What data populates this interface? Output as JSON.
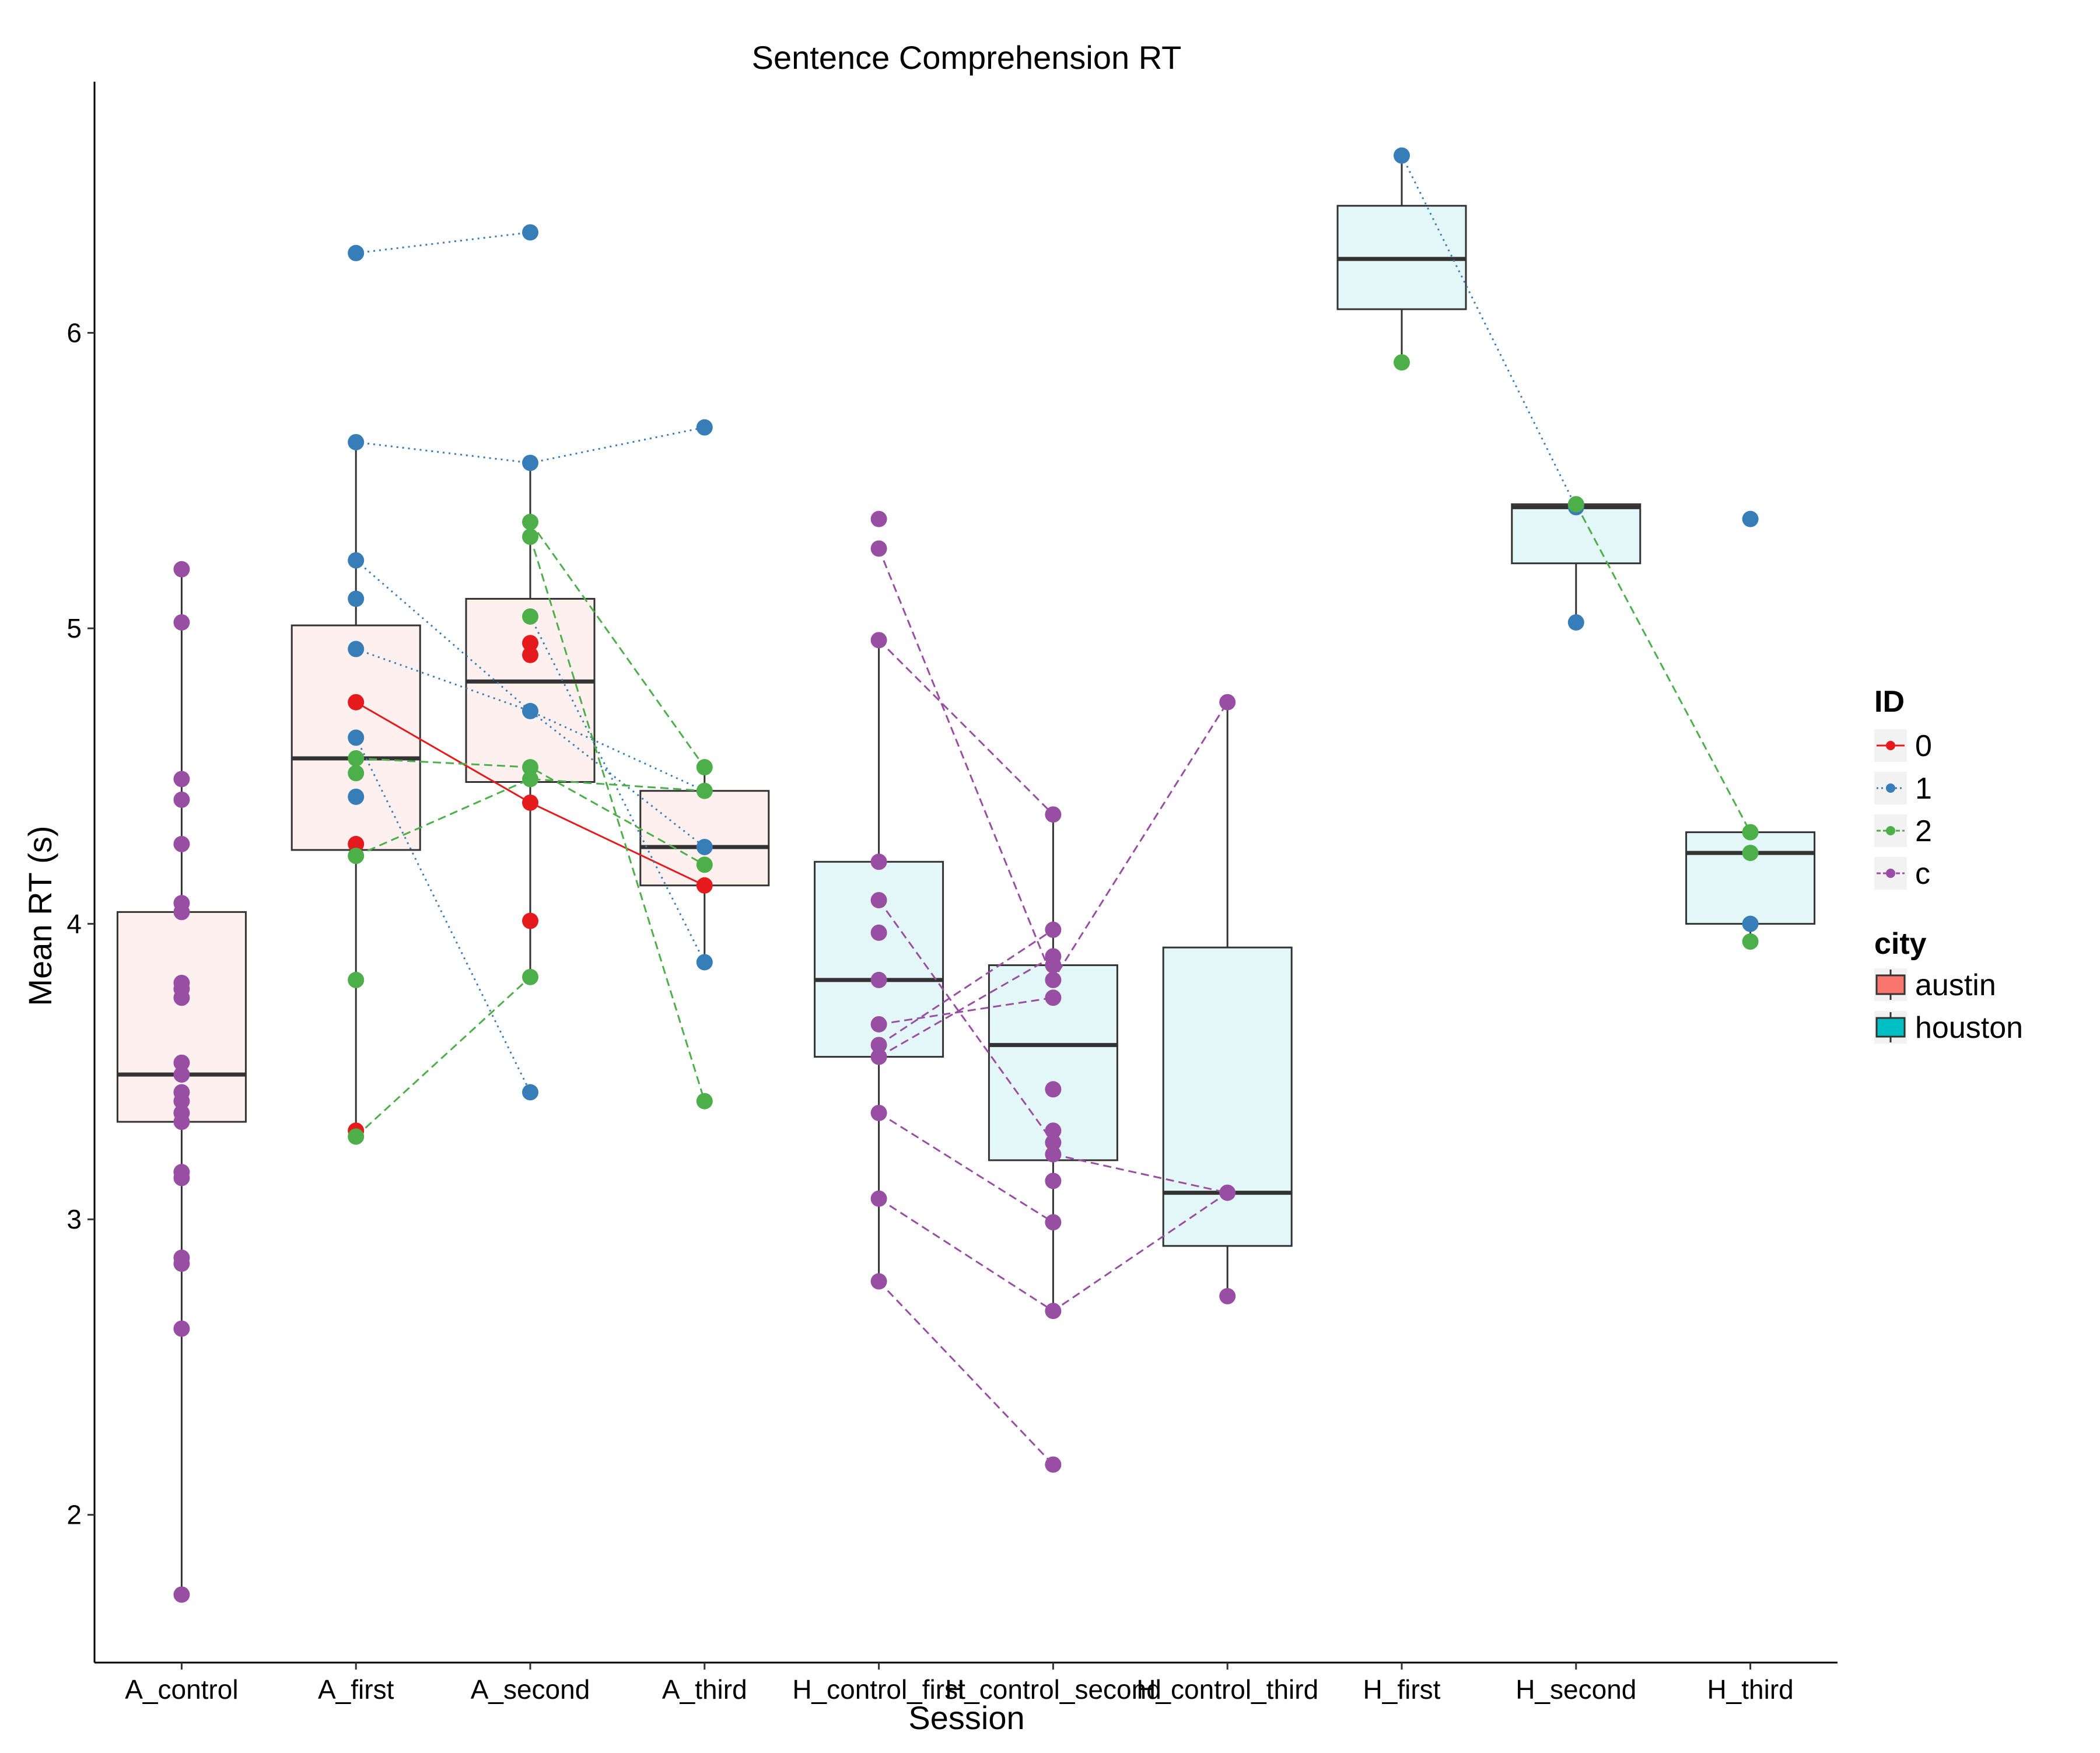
{
  "chart_data": {
    "type": "box",
    "title": "Sentence Comprehension RT",
    "xlabel": "Session",
    "ylabel": "Mean RT (s)",
    "ylim": [
      1.5,
      6.85
    ],
    "yticks": [
      2,
      3,
      4,
      5,
      6
    ],
    "categories": [
      "A_control",
      "A_first",
      "A_second",
      "A_third",
      "H_control_first",
      "H_control_second",
      "H_control_third",
      "H_first",
      "H_second",
      "H_third"
    ],
    "grid": false,
    "legend_position": "right",
    "city_colors": {
      "austin": "#f8766d",
      "houston": "#00bfc4"
    },
    "box_fill_colors": {
      "austin": "#fef0ef",
      "houston": "#e4f7f8"
    },
    "boxes": [
      {
        "category": "A_control",
        "city": "austin",
        "min": 1.73,
        "q1": 3.33,
        "median": 3.49,
        "q3": 4.04,
        "max": 5.2
      },
      {
        "category": "A_first",
        "city": "austin",
        "min": 3.28,
        "q1": 4.25,
        "median": 4.56,
        "q3": 5.01,
        "max": 5.63
      },
      {
        "category": "A_second",
        "city": "austin",
        "min": 3.82,
        "q1": 4.48,
        "median": 4.82,
        "q3": 5.1,
        "max": 5.56
      },
      {
        "category": "A_third",
        "city": "austin",
        "min": 3.87,
        "q1": 4.13,
        "median": 4.26,
        "q3": 4.45,
        "max": 4.53
      },
      {
        "category": "H_control_first",
        "city": "houston",
        "min": 2.79,
        "q1": 3.55,
        "median": 3.81,
        "q3": 4.21,
        "max": 4.96
      },
      {
        "category": "H_control_second",
        "city": "houston",
        "min": 2.69,
        "q1": 3.2,
        "median": 3.59,
        "q3": 3.86,
        "max": 4.37
      },
      {
        "category": "H_control_third",
        "city": "houston",
        "min": 2.74,
        "q1": 2.91,
        "median": 3.09,
        "q3": 3.92,
        "max": 4.75
      },
      {
        "category": "H_first",
        "city": "houston",
        "min": 5.9,
        "q1": 6.08,
        "median": 6.25,
        "q3": 6.43,
        "max": 6.6
      },
      {
        "category": "H_second",
        "city": "houston",
        "min": 5.02,
        "q1": 5.22,
        "median": 5.41,
        "q3": 5.42,
        "max": 5.42
      },
      {
        "category": "H_third",
        "city": "houston",
        "min": 3.94,
        "q1": 4.0,
        "median": 4.24,
        "q3": 4.31,
        "max": 4.31
      }
    ],
    "outliers": [
      {
        "category": "A_first",
        "y": 6.27,
        "id": "1"
      },
      {
        "category": "A_second",
        "y": 6.34,
        "id": "1"
      },
      {
        "category": "A_second",
        "y": 3.43,
        "id": "1"
      },
      {
        "category": "A_third",
        "y": 5.68,
        "id": "1"
      },
      {
        "category": "A_third",
        "y": 3.4,
        "id": "2"
      },
      {
        "category": "H_control_first",
        "y": 5.37,
        "id": "c"
      },
      {
        "category": "H_control_first",
        "y": 5.27,
        "id": "c"
      },
      {
        "category": "H_control_second",
        "y": 2.17,
        "id": "c"
      },
      {
        "category": "H_third",
        "y": 5.37,
        "id": "1"
      }
    ],
    "id_colors": {
      "0": "#e41a1c",
      "1": "#377eb8",
      "2": "#4daf4a",
      "c": "#984ea3"
    },
    "id_dash": {
      "0": "solid",
      "1": "dotted",
      "2": "dashed",
      "c": "dashed"
    },
    "points": [
      {
        "category": "A_control",
        "values": [
          5.2,
          5.02,
          4.49,
          4.42,
          4.27,
          4.07,
          4.04,
          3.8,
          3.78,
          3.75,
          3.53,
          3.49,
          3.43,
          3.4,
          3.36,
          3.33,
          3.16,
          3.14,
          2.87,
          2.85,
          2.63,
          1.73
        ],
        "id": "c"
      },
      {
        "category": "A_first",
        "values": [
          4.75,
          4.27,
          3.3
        ],
        "id": "0"
      },
      {
        "category": "A_first",
        "values": [
          6.27,
          5.63,
          5.23,
          5.1,
          4.93,
          4.63,
          4.43
        ],
        "id": "1"
      },
      {
        "category": "A_first",
        "values": [
          4.56,
          4.51,
          4.23,
          3.81,
          3.28
        ],
        "id": "2"
      },
      {
        "category": "A_second",
        "values": [
          4.95,
          4.91,
          4.41,
          4.01
        ],
        "id": "0"
      },
      {
        "category": "A_second",
        "values": [
          6.34,
          5.56,
          4.72,
          3.43
        ],
        "id": "1"
      },
      {
        "category": "A_second",
        "values": [
          5.36,
          5.31,
          5.04,
          4.53,
          4.49,
          3.82
        ],
        "id": "2"
      },
      {
        "category": "A_third",
        "values": [
          4.13
        ],
        "id": "0"
      },
      {
        "category": "A_third",
        "values": [
          5.68,
          4.26,
          3.87
        ],
        "id": "1"
      },
      {
        "category": "A_third",
        "values": [
          4.53,
          4.45,
          4.2,
          3.4
        ],
        "id": "2"
      },
      {
        "category": "H_control_first",
        "values": [
          5.37,
          5.27,
          4.96,
          4.21,
          4.08,
          3.97,
          3.81,
          3.66,
          3.59,
          3.55,
          3.36,
          3.07,
          2.79
        ],
        "id": "c"
      },
      {
        "category": "H_control_second",
        "values": [
          4.37,
          3.98,
          3.89,
          3.86,
          3.81,
          3.75,
          3.44,
          3.3,
          3.26,
          3.22,
          3.13,
          2.99,
          2.69,
          2.17
        ],
        "id": "c"
      },
      {
        "category": "H_control_third",
        "values": [
          4.75,
          3.09,
          2.74
        ],
        "id": "c"
      },
      {
        "category": "H_first",
        "values": [
          6.6
        ],
        "id": "1"
      },
      {
        "category": "H_first",
        "values": [
          5.9
        ],
        "id": "2"
      },
      {
        "category": "H_second",
        "values": [
          5.41,
          5.02
        ],
        "id": "1"
      },
      {
        "category": "H_second",
        "values": [
          5.42
        ],
        "id": "2"
      },
      {
        "category": "H_third",
        "values": [
          5.37,
          4.0
        ],
        "id": "1"
      },
      {
        "category": "H_third",
        "values": [
          4.31,
          4.24,
          3.94
        ],
        "id": "2"
      }
    ],
    "lines": [
      {
        "id": "0",
        "points": [
          [
            "A_first",
            4.75
          ],
          [
            "A_second",
            4.41
          ],
          [
            "A_third",
            4.13
          ]
        ]
      },
      {
        "id": "1",
        "points": [
          [
            "A_first",
            6.27
          ],
          [
            "A_second",
            6.34
          ]
        ]
      },
      {
        "id": "1",
        "points": [
          [
            "A_first",
            5.63
          ],
          [
            "A_second",
            5.56
          ],
          [
            "A_third",
            5.68
          ]
        ]
      },
      {
        "id": "1",
        "points": [
          [
            "A_first",
            5.23
          ],
          [
            "A_second",
            4.72
          ],
          [
            "A_third",
            4.45
          ]
        ]
      },
      {
        "id": "1",
        "points": [
          [
            "A_first",
            4.93
          ],
          [
            "A_second",
            4.72
          ],
          [
            "A_third",
            4.26
          ]
        ]
      },
      {
        "id": "1",
        "points": [
          [
            "A_first",
            4.63
          ],
          [
            "A_second",
            3.43
          ]
        ]
      },
      {
        "id": "1",
        "points": [
          [
            "A_second",
            5.04
          ],
          [
            "A_third",
            3.87
          ]
        ]
      },
      {
        "id": "1",
        "points": [
          [
            "H_first",
            6.6
          ],
          [
            "H_second",
            5.41
          ]
        ]
      },
      {
        "id": "2",
        "points": [
          [
            "A_first",
            4.56
          ],
          [
            "A_second",
            4.53
          ],
          [
            "A_third",
            4.2
          ]
        ]
      },
      {
        "id": "2",
        "points": [
          [
            "A_first",
            4.23
          ],
          [
            "A_second",
            4.49
          ],
          [
            "A_third",
            4.45
          ]
        ]
      },
      {
        "id": "2",
        "points": [
          [
            "A_first",
            3.28
          ],
          [
            "A_second",
            3.82
          ]
        ]
      },
      {
        "id": "2",
        "points": [
          [
            "A_second",
            5.36
          ],
          [
            "A_third",
            4.53
          ]
        ]
      },
      {
        "id": "2",
        "points": [
          [
            "A_second",
            5.31
          ],
          [
            "A_third",
            3.4
          ]
        ]
      },
      {
        "id": "2",
        "points": [
          [
            "H_second",
            5.42
          ],
          [
            "H_third",
            4.31
          ]
        ]
      },
      {
        "id": "c",
        "points": [
          [
            "H_control_first",
            5.27
          ],
          [
            "H_control_second",
            3.81
          ],
          [
            "H_control_third",
            4.75
          ]
        ]
      },
      {
        "id": "c",
        "points": [
          [
            "H_control_first",
            4.96
          ],
          [
            "H_control_second",
            4.37
          ]
        ]
      },
      {
        "id": "c",
        "points": [
          [
            "H_control_first",
            4.08
          ],
          [
            "H_control_second",
            3.26
          ]
        ]
      },
      {
        "id": "c",
        "points": [
          [
            "H_control_first",
            3.59
          ],
          [
            "H_control_second",
            3.98
          ]
        ]
      },
      {
        "id": "c",
        "points": [
          [
            "H_control_first",
            3.55
          ],
          [
            "H_control_second",
            3.89
          ]
        ]
      },
      {
        "id": "c",
        "points": [
          [
            "H_control_first",
            3.66
          ],
          [
            "H_control_second",
            3.75
          ]
        ]
      },
      {
        "id": "c",
        "points": [
          [
            "H_control_first",
            3.36
          ],
          [
            "H_control_second",
            2.99
          ]
        ]
      },
      {
        "id": "c",
        "points": [
          [
            "H_control_first",
            3.07
          ],
          [
            "H_control_second",
            2.69
          ],
          [
            "H_control_third",
            3.09
          ]
        ]
      },
      {
        "id": "c",
        "points": [
          [
            "H_control_first",
            2.79
          ],
          [
            "H_control_second",
            2.17
          ]
        ]
      },
      {
        "id": "c",
        "points": [
          [
            "H_control_second",
            3.22
          ],
          [
            "H_control_third",
            3.09
          ]
        ]
      }
    ],
    "legend": {
      "id_title": "ID",
      "id_entries": [
        {
          "key": "0",
          "label": "0"
        },
        {
          "key": "1",
          "label": "1"
        },
        {
          "key": "2",
          "label": "2"
        },
        {
          "key": "c",
          "label": "c"
        }
      ],
      "city_title": "city",
      "city_entries": [
        {
          "key": "austin",
          "label": "austin"
        },
        {
          "key": "houston",
          "label": "houston"
        }
      ]
    }
  }
}
